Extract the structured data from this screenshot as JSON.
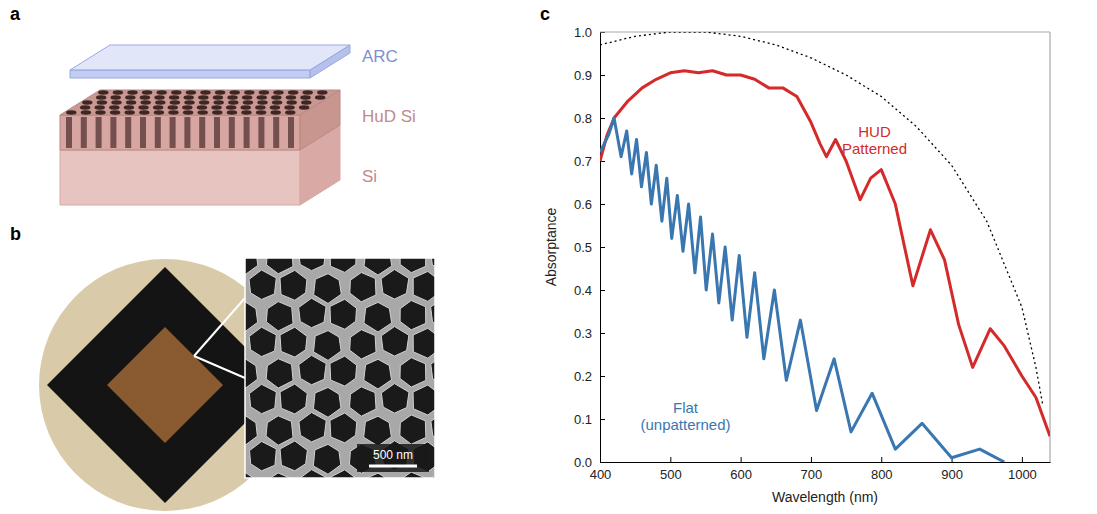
{
  "panels": {
    "a": {
      "letter": "a",
      "layers": [
        "ARC",
        "HuD Si",
        "Si"
      ]
    },
    "b": {
      "letter": "b",
      "scale_bar": "500 nm"
    }
  },
  "chart_data": {
    "type": "line",
    "panel_label": "c",
    "xlabel": "Wavelength (nm)",
    "ylabel": "Absorptance",
    "xlim": [
      400,
      1040
    ],
    "xticks": [
      400,
      500,
      600,
      700,
      800,
      900,
      1000
    ],
    "ylim": [
      0,
      1
    ],
    "yticks": [
      {
        "value": 0,
        "label": "0.0"
      },
      0.1,
      0.2,
      0.3,
      0.4,
      0.5,
      0.6,
      0.7,
      0.8,
      0.9,
      {
        "value": 1,
        "label": "1.0"
      }
    ],
    "series": [
      {
        "name": "HUD Patterned",
        "color": "#d42a2a",
        "x": [
          400,
          410,
          420,
          440,
          460,
          480,
          500,
          520,
          540,
          560,
          580,
          600,
          620,
          640,
          660,
          680,
          700,
          713,
          722,
          735,
          750,
          770,
          785,
          800,
          820,
          845,
          870,
          890,
          910,
          930,
          955,
          975,
          1000,
          1020,
          1040
        ],
        "values": [
          0.7,
          0.76,
          0.8,
          0.84,
          0.87,
          0.89,
          0.905,
          0.91,
          0.905,
          0.91,
          0.9,
          0.9,
          0.89,
          0.87,
          0.87,
          0.85,
          0.79,
          0.74,
          0.71,
          0.75,
          0.7,
          0.61,
          0.66,
          0.68,
          0.6,
          0.41,
          0.54,
          0.47,
          0.32,
          0.22,
          0.31,
          0.27,
          0.2,
          0.15,
          0.06
        ]
      },
      {
        "name": "Flat (unpatterned)",
        "color": "#3a76b0",
        "x": [
          400,
          412,
          420,
          430,
          438,
          445,
          452,
          459,
          466,
          473,
          480,
          488,
          495,
          502,
          510,
          518,
          526,
          535,
          543,
          551,
          560,
          569,
          578,
          588,
          598,
          609,
          620,
          633,
          648,
          665,
          685,
          708,
          733,
          757,
          787,
          820,
          858,
          900,
          940,
          975
        ],
        "values": [
          0.72,
          0.76,
          0.8,
          0.71,
          0.77,
          0.67,
          0.75,
          0.64,
          0.72,
          0.6,
          0.69,
          0.56,
          0.66,
          0.52,
          0.62,
          0.49,
          0.6,
          0.44,
          0.57,
          0.4,
          0.53,
          0.37,
          0.5,
          0.33,
          0.48,
          0.29,
          0.44,
          0.24,
          0.4,
          0.19,
          0.33,
          0.12,
          0.24,
          0.07,
          0.16,
          0.03,
          0.09,
          0.01,
          0.03,
          0.0
        ]
      },
      {
        "color": "#000000",
        "line_style": "dotted",
        "x": [
          400,
          450,
          500,
          550,
          600,
          650,
          700,
          750,
          800,
          850,
          900,
          950,
          1000,
          1020,
          1030
        ],
        "values": [
          0.97,
          0.99,
          1.0,
          1.0,
          0.99,
          0.97,
          0.94,
          0.9,
          0.85,
          0.78,
          0.69,
          0.56,
          0.36,
          0.22,
          0.13
        ]
      }
    ]
  }
}
